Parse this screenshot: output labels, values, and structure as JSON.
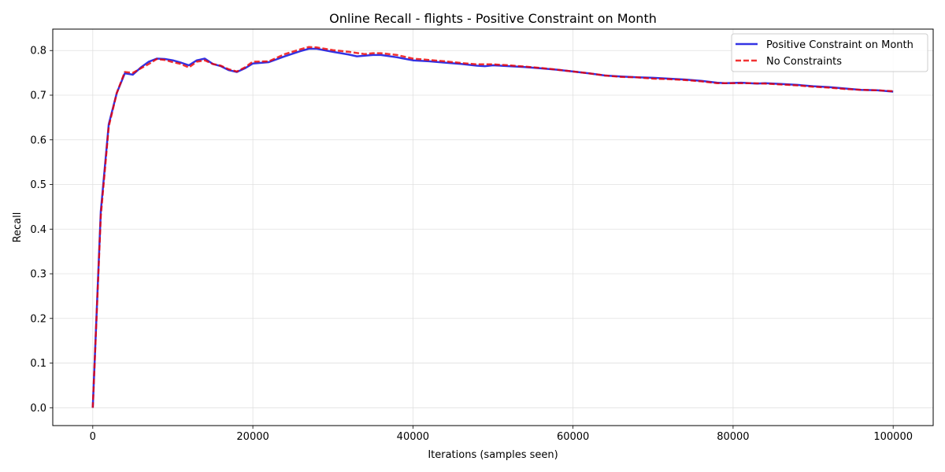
{
  "chart_data": {
    "type": "line",
    "title": "Online Recall - flights - Positive Constraint on Month",
    "xlabel": "Iterations (samples seen)",
    "ylabel": "Recall",
    "xlim": [
      -5000,
      105000
    ],
    "ylim": [
      -0.04,
      0.848
    ],
    "xticks": [
      0,
      20000,
      40000,
      60000,
      80000,
      100000
    ],
    "yticks": [
      0.0,
      0.1,
      0.2,
      0.3,
      0.4,
      0.5,
      0.6,
      0.7,
      0.8
    ],
    "grid": true,
    "legend_position": "top-right",
    "series": [
      {
        "name": "Positive Constraint on Month",
        "color": "#0000dd",
        "style": "solid",
        "points": [
          [
            0,
            0.0
          ],
          [
            1000,
            0.44
          ],
          [
            2000,
            0.635
          ],
          [
            3000,
            0.705
          ],
          [
            4000,
            0.749
          ],
          [
            5000,
            0.746
          ],
          [
            6000,
            0.762
          ],
          [
            7000,
            0.775
          ],
          [
            8000,
            0.782
          ],
          [
            9000,
            0.781
          ],
          [
            10000,
            0.778
          ],
          [
            11000,
            0.773
          ],
          [
            12000,
            0.767
          ],
          [
            13000,
            0.778
          ],
          [
            14000,
            0.782
          ],
          [
            15000,
            0.77
          ],
          [
            16000,
            0.765
          ],
          [
            17000,
            0.756
          ],
          [
            18000,
            0.752
          ],
          [
            19000,
            0.76
          ],
          [
            20000,
            0.771
          ],
          [
            22000,
            0.774
          ],
          [
            24000,
            0.787
          ],
          [
            26000,
            0.799
          ],
          [
            27000,
            0.804
          ],
          [
            28000,
            0.804
          ],
          [
            30000,
            0.797
          ],
          [
            32000,
            0.791
          ],
          [
            33000,
            0.787
          ],
          [
            35000,
            0.79
          ],
          [
            36000,
            0.79
          ],
          [
            38000,
            0.785
          ],
          [
            40000,
            0.778
          ],
          [
            42000,
            0.776
          ],
          [
            44000,
            0.773
          ],
          [
            46000,
            0.77
          ],
          [
            48000,
            0.766
          ],
          [
            49000,
            0.765
          ],
          [
            50000,
            0.767
          ],
          [
            52000,
            0.765
          ],
          [
            54000,
            0.763
          ],
          [
            56000,
            0.76
          ],
          [
            58000,
            0.757
          ],
          [
            60000,
            0.753
          ],
          [
            62000,
            0.749
          ],
          [
            64000,
            0.744
          ],
          [
            66000,
            0.742
          ],
          [
            68000,
            0.74
          ],
          [
            70000,
            0.739
          ],
          [
            72000,
            0.737
          ],
          [
            74000,
            0.735
          ],
          [
            76000,
            0.732
          ],
          [
            78000,
            0.728
          ],
          [
            79000,
            0.727
          ],
          [
            81000,
            0.728
          ],
          [
            83000,
            0.726
          ],
          [
            84000,
            0.727
          ],
          [
            86000,
            0.725
          ],
          [
            88000,
            0.723
          ],
          [
            90000,
            0.72
          ],
          [
            92000,
            0.718
          ],
          [
            94000,
            0.715
          ],
          [
            96000,
            0.712
          ],
          [
            98000,
            0.711
          ],
          [
            100000,
            0.708
          ]
        ]
      },
      {
        "name": "No Constraints",
        "color": "#ee0000",
        "style": "dashed",
        "points": [
          [
            0,
            0.0
          ],
          [
            1000,
            0.43
          ],
          [
            2000,
            0.63
          ],
          [
            3000,
            0.705
          ],
          [
            4000,
            0.752
          ],
          [
            5000,
            0.75
          ],
          [
            6000,
            0.76
          ],
          [
            7000,
            0.77
          ],
          [
            8000,
            0.781
          ],
          [
            9000,
            0.779
          ],
          [
            10000,
            0.774
          ],
          [
            11000,
            0.77
          ],
          [
            12000,
            0.762
          ],
          [
            13000,
            0.775
          ],
          [
            14000,
            0.778
          ],
          [
            15000,
            0.77
          ],
          [
            16000,
            0.766
          ],
          [
            17000,
            0.758
          ],
          [
            18000,
            0.753
          ],
          [
            19000,
            0.762
          ],
          [
            20000,
            0.775
          ],
          [
            22000,
            0.776
          ],
          [
            24000,
            0.792
          ],
          [
            26000,
            0.803
          ],
          [
            27000,
            0.808
          ],
          [
            28000,
            0.807
          ],
          [
            30000,
            0.801
          ],
          [
            32000,
            0.797
          ],
          [
            34000,
            0.792
          ],
          [
            35000,
            0.794
          ],
          [
            36000,
            0.794
          ],
          [
            38000,
            0.79
          ],
          [
            40000,
            0.782
          ],
          [
            42000,
            0.779
          ],
          [
            44000,
            0.776
          ],
          [
            46000,
            0.772
          ],
          [
            48000,
            0.769
          ],
          [
            50000,
            0.769
          ],
          [
            52000,
            0.767
          ],
          [
            54000,
            0.764
          ],
          [
            56000,
            0.761
          ],
          [
            58000,
            0.757
          ],
          [
            60000,
            0.753
          ],
          [
            62000,
            0.749
          ],
          [
            64000,
            0.744
          ],
          [
            66000,
            0.741
          ],
          [
            68000,
            0.74
          ],
          [
            70000,
            0.737
          ],
          [
            72000,
            0.736
          ],
          [
            74000,
            0.734
          ],
          [
            76000,
            0.731
          ],
          [
            78000,
            0.727
          ],
          [
            80000,
            0.727
          ],
          [
            82000,
            0.727
          ],
          [
            84000,
            0.726
          ],
          [
            86000,
            0.724
          ],
          [
            88000,
            0.722
          ],
          [
            90000,
            0.719
          ],
          [
            92000,
            0.717
          ],
          [
            94000,
            0.714
          ],
          [
            96000,
            0.712
          ],
          [
            98000,
            0.711
          ],
          [
            100000,
            0.709
          ]
        ]
      }
    ]
  }
}
